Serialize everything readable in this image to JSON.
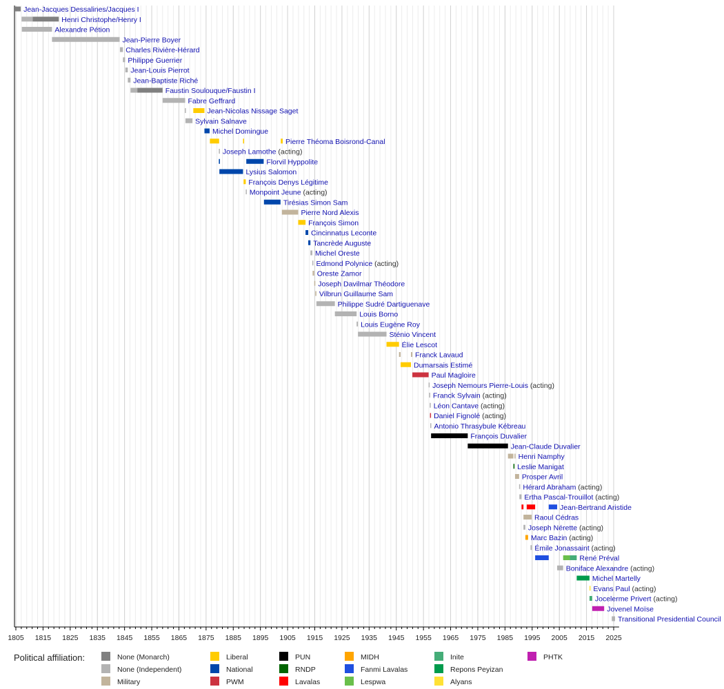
{
  "chart_data": {
    "type": "timeline",
    "title": "",
    "xlim": [
      1804.5,
      2027
    ],
    "x_ticks": [
      1805,
      1815,
      1825,
      1835,
      1845,
      1855,
      1865,
      1875,
      1885,
      1895,
      1905,
      1915,
      1925,
      1935,
      1945,
      1955,
      1965,
      1975,
      1985,
      1995,
      2005,
      2015,
      2025
    ],
    "grid": true,
    "legend": {
      "title": "Political affiliation:",
      "placement": "bottom",
      "items": [
        {
          "key": "monarch",
          "label": "None (Monarch)",
          "color": "#808080"
        },
        {
          "key": "indep",
          "label": "None (Independent)",
          "color": "#b3b3b3"
        },
        {
          "key": "military",
          "label": "Military",
          "color": "#c2b49c"
        },
        {
          "key": "liberal",
          "label": "Liberal",
          "color": "#ffcc00"
        },
        {
          "key": "national",
          "label": "National",
          "color": "#0047ab"
        },
        {
          "key": "pwm",
          "label": "PWM",
          "color": "#cc3340"
        },
        {
          "key": "pun",
          "label": "PUN",
          "color": "#000000"
        },
        {
          "key": "rndp",
          "label": "RNDP",
          "color": "#006400"
        },
        {
          "key": "lavalas",
          "label": "Lavalas",
          "color": "#ff0000"
        },
        {
          "key": "midh",
          "label": "MIDH",
          "color": "#ffa500"
        },
        {
          "key": "fanmi",
          "label": "Fanmi Lavalas",
          "color": "#1f4fe0"
        },
        {
          "key": "lespwa",
          "label": "Lespwa",
          "color": "#6abf4b"
        },
        {
          "key": "inite",
          "label": "Inite",
          "color": "#45ad78"
        },
        {
          "key": "repons",
          "label": "Repons Peyizan",
          "color": "#009b4c"
        },
        {
          "key": "alyans",
          "label": "Alyans",
          "color": "#ffe135"
        },
        {
          "key": "phtk",
          "label": "PHTK",
          "color": "#c020b0"
        }
      ]
    },
    "rows": [
      {
        "name": "Jean-Jacques Dessalines/Jacques I",
        "terms": [
          [
            1804.5,
            1806.8,
            "monarch"
          ]
        ]
      },
      {
        "name": "Henri Christophe/Henry I",
        "terms": [
          [
            1807.1,
            1811.2,
            "indep"
          ],
          [
            1811.2,
            1820.8,
            "monarch"
          ]
        ]
      },
      {
        "name": "Alexandre Pétion",
        "terms": [
          [
            1807.2,
            1818.3,
            "indep"
          ]
        ]
      },
      {
        "name": "Jean-Pierre Boyer",
        "terms": [
          [
            1818.3,
            1843.2,
            "indep"
          ]
        ]
      },
      {
        "name": "Charles Rivière-Hérard",
        "terms": [
          [
            1843.3,
            1844.4,
            "indep"
          ]
        ]
      },
      {
        "name": "Philippe Guerrier",
        "terms": [
          [
            1844.4,
            1845.2,
            "indep"
          ]
        ]
      },
      {
        "name": "Jean-Louis Pierrot",
        "terms": [
          [
            1845.3,
            1846.2,
            "indep"
          ]
        ]
      },
      {
        "name": "Jean-Baptiste Riché",
        "terms": [
          [
            1846.2,
            1847.2,
            "indep"
          ]
        ]
      },
      {
        "name": "Faustin Soulouque/Faustin I",
        "terms": [
          [
            1847.2,
            1849.7,
            "indep"
          ],
          [
            1849.7,
            1859.0,
            "monarch"
          ]
        ]
      },
      {
        "name": "Fabre Geffrard",
        "terms": [
          [
            1859.0,
            1867.3,
            "indep"
          ]
        ]
      },
      {
        "name": "Jean-Nicolas Nissage Saget",
        "terms": [
          [
            1867.2,
            1867.4,
            "indep"
          ],
          [
            1870.3,
            1874.4,
            "liberal"
          ]
        ]
      },
      {
        "name": "Sylvain Salnave",
        "terms": [
          [
            1867.4,
            1870.0,
            "indep"
          ]
        ]
      },
      {
        "name": "Michel Domingue",
        "terms": [
          [
            1874.4,
            1876.3,
            "national"
          ]
        ]
      },
      {
        "name": "Pierre Théoma Boisrond-Canal",
        "terms": [
          [
            1876.4,
            1879.8,
            "liberal"
          ],
          [
            1888.6,
            1889.0,
            "liberal"
          ],
          [
            1902.5,
            1903.2,
            "liberal"
          ]
        ]
      },
      {
        "name": "Joseph Lamothe",
        "suffix": "(acting)",
        "terms": [
          [
            1879.7,
            1879.9,
            "indep"
          ]
        ]
      },
      {
        "name": "Florvil Hyppolite",
        "terms": [
          [
            1879.7,
            1880.1,
            "national"
          ],
          [
            1889.8,
            1896.2,
            "national"
          ]
        ]
      },
      {
        "name": "Lysius Salomon",
        "terms": [
          [
            1879.9,
            1888.6,
            "national"
          ]
        ]
      },
      {
        "name": "François Denys Légitime",
        "terms": [
          [
            1888.8,
            1889.6,
            "liberal"
          ]
        ]
      },
      {
        "name": "Monpoint Jeune",
        "suffix": "(acting)",
        "terms": [
          [
            1889.6,
            1889.9,
            "indep"
          ]
        ]
      },
      {
        "name": "Tirésias Simon Sam",
        "terms": [
          [
            1896.3,
            1902.4,
            "national"
          ]
        ]
      },
      {
        "name": "Pierre Nord Alexis",
        "terms": [
          [
            1902.9,
            1908.9,
            "military"
          ]
        ]
      },
      {
        "name": "François Simon",
        "terms": [
          [
            1908.9,
            1911.6,
            "liberal"
          ]
        ]
      },
      {
        "name": "Cincinnatus Leconte",
        "terms": [
          [
            1911.6,
            1912.6,
            "national"
          ]
        ]
      },
      {
        "name": "Tancrède Auguste",
        "terms": [
          [
            1912.6,
            1913.4,
            "national"
          ]
        ]
      },
      {
        "name": "Michel Oreste",
        "terms": [
          [
            1913.4,
            1914.1,
            "indep"
          ]
        ]
      },
      {
        "name": "Edmond Polynice",
        "suffix": "(acting)",
        "terms": [
          [
            1914.1,
            1914.2,
            "indep"
          ]
        ]
      },
      {
        "name": "Oreste Zamor",
        "terms": [
          [
            1914.2,
            1914.8,
            "military"
          ]
        ]
      },
      {
        "name": "Joseph Davilmar Théodore",
        "terms": [
          [
            1914.8,
            1915.2,
            "military"
          ]
        ]
      },
      {
        "name": "Vilbrun Guillaume Sam",
        "terms": [
          [
            1915.2,
            1915.6,
            "military"
          ]
        ]
      },
      {
        "name": "Philippe Sudré Dartiguenave",
        "terms": [
          [
            1915.6,
            1922.4,
            "indep"
          ]
        ]
      },
      {
        "name": "Louis Borno",
        "terms": [
          [
            1922.4,
            1930.4,
            "indep"
          ]
        ]
      },
      {
        "name": "Louis Eugène Roy",
        "terms": [
          [
            1930.4,
            1930.9,
            "indep"
          ]
        ]
      },
      {
        "name": "Sténio Vincent",
        "terms": [
          [
            1930.9,
            1941.4,
            "indep"
          ]
        ]
      },
      {
        "name": "Élie Lescot",
        "terms": [
          [
            1941.4,
            1946.0,
            "liberal"
          ]
        ]
      },
      {
        "name": "Franck Lavaud",
        "terms": [
          [
            1946.0,
            1946.6,
            "military"
          ],
          [
            1950.4,
            1950.9,
            "military"
          ]
        ]
      },
      {
        "name": "Dumarsais Estimé",
        "terms": [
          [
            1946.6,
            1950.4,
            "liberal"
          ]
        ]
      },
      {
        "name": "Paul Magloire",
        "terms": [
          [
            1950.9,
            1956.9,
            "pwm"
          ]
        ]
      },
      {
        "name": "Joseph Nemours Pierre-Louis",
        "suffix": "(acting)",
        "terms": [
          [
            1956.9,
            1957.1,
            "indep"
          ]
        ]
      },
      {
        "name": "Franck Sylvain",
        "suffix": "(acting)",
        "terms": [
          [
            1957.1,
            1957.3,
            "indep"
          ]
        ]
      },
      {
        "name": "Léon Cantave",
        "suffix": "(acting)",
        "terms": [
          [
            1957.3,
            1957.4,
            "indep"
          ]
        ]
      },
      {
        "name": "Daniel Fignolé",
        "suffix": "(acting)",
        "terms": [
          [
            1957.4,
            1957.5,
            "pwm"
          ]
        ]
      },
      {
        "name": "Antonio Thrasybule Kébreau",
        "terms": [
          [
            1957.5,
            1957.8,
            "indep"
          ]
        ]
      },
      {
        "name": "François Duvalier",
        "terms": [
          [
            1957.8,
            1971.3,
            "pun"
          ]
        ]
      },
      {
        "name": "Jean-Claude Duvalier",
        "terms": [
          [
            1971.3,
            1986.1,
            "pun"
          ]
        ]
      },
      {
        "name": "Henri Namphy",
        "terms": [
          [
            1986.1,
            1988.1,
            "military"
          ],
          [
            1988.5,
            1988.7,
            "military"
          ]
        ]
      },
      {
        "name": "Leslie Manigat",
        "terms": [
          [
            1988.1,
            1988.5,
            "rndp"
          ]
        ]
      },
      {
        "name": "Prosper Avril",
        "terms": [
          [
            1988.7,
            1990.2,
            "military"
          ]
        ]
      },
      {
        "name": "Hérard Abraham",
        "suffix": "(acting)",
        "terms": [
          [
            1990.2,
            1990.3,
            "indep"
          ]
        ]
      },
      {
        "name": "Ertha Pascal-Trouillot",
        "suffix": "(acting)",
        "terms": [
          [
            1990.3,
            1991.1,
            "indep"
          ]
        ]
      },
      {
        "name": "Jean-Bertrand Aristide",
        "terms": [
          [
            1991.1,
            1991.8,
            "lavalas"
          ],
          [
            1993.0,
            1996.1,
            "lavalas"
          ],
          [
            2001.1,
            2004.2,
            "fanmi"
          ]
        ]
      },
      {
        "name": "Raoul Cédras",
        "terms": [
          [
            1991.8,
            1994.8,
            "military"
          ]
        ]
      },
      {
        "name": "Joseph Nérette",
        "suffix": "(acting)",
        "terms": [
          [
            1991.8,
            1992.5,
            "indep"
          ]
        ]
      },
      {
        "name": "Marc Bazin",
        "suffix": "(acting)",
        "terms": [
          [
            1992.5,
            1993.5,
            "midh"
          ]
        ]
      },
      {
        "name": "Émile Jonassaint",
        "suffix": "(acting)",
        "terms": [
          [
            1994.4,
            1994.9,
            "indep"
          ]
        ]
      },
      {
        "name": "René Préval",
        "terms": [
          [
            1996.1,
            2001.1,
            "fanmi"
          ],
          [
            2006.4,
            2008.9,
            "lespwa"
          ],
          [
            2008.9,
            2011.4,
            "inite"
          ]
        ]
      },
      {
        "name": "Boniface Alexandre",
        "suffix": "(acting)",
        "terms": [
          [
            2004.2,
            2006.4,
            "indep"
          ]
        ]
      },
      {
        "name": "Michel Martelly",
        "terms": [
          [
            2011.4,
            2016.1,
            "repons"
          ]
        ]
      },
      {
        "name": "Evans Paul",
        "suffix": "(acting)",
        "terms": [
          [
            2016.1,
            2016.3,
            "alyans"
          ]
        ]
      },
      {
        "name": "Jocelerme Privert",
        "suffix": "(acting)",
        "terms": [
          [
            2016.1,
            2017.1,
            "inite"
          ]
        ]
      },
      {
        "name": "Jovenel Moïse",
        "terms": [
          [
            2017.1,
            2021.5,
            "phtk"
          ]
        ]
      },
      {
        "name": "Transitional Presidential Council",
        "terms": [
          [
            2024.3,
            2025.5,
            "indep"
          ]
        ]
      }
    ]
  }
}
